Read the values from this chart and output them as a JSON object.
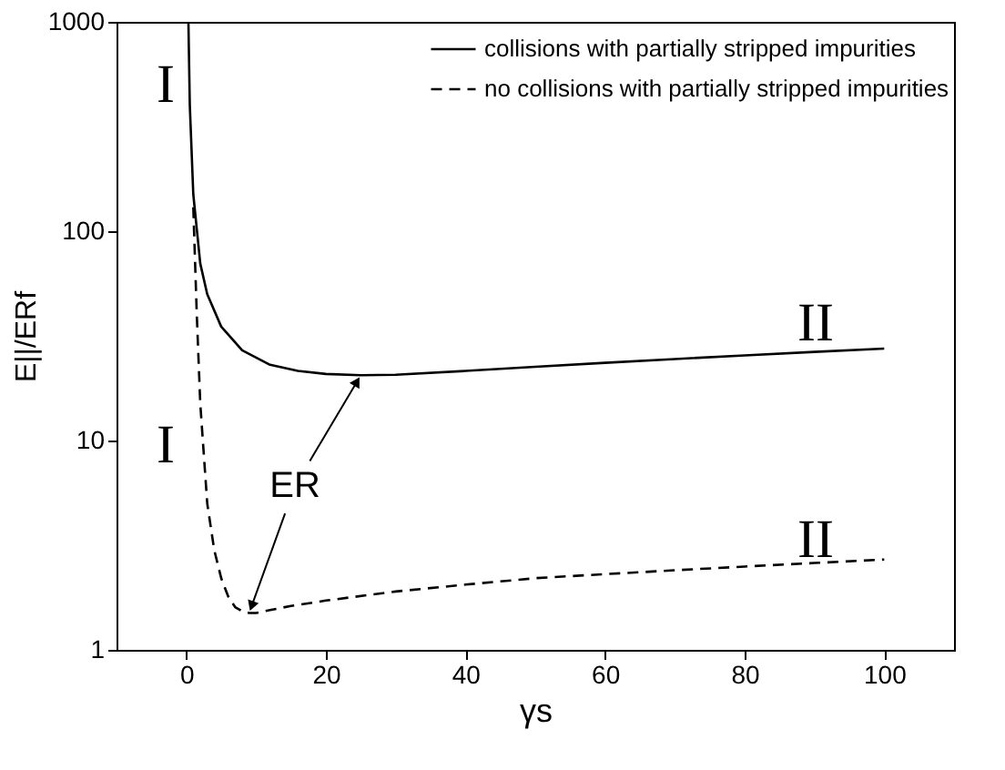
{
  "chart_data": {
    "type": "line",
    "xlabel": "γs",
    "ylabel": "E||/ERf",
    "log": "y",
    "xlim": [
      -10,
      110
    ],
    "xticks": [
      0,
      20,
      40,
      60,
      80,
      100
    ],
    "ylim": [
      1,
      1000
    ],
    "yticks": [
      1,
      10,
      100,
      {
        "value": 1000,
        "label": "1000"
      }
    ],
    "grid": false,
    "legend": "top right",
    "marker": "none",
    "series": [
      {
        "name": "collisions with partially stripped impurities",
        "color": "#000000",
        "line_style": "solid",
        "x": [
          0.3,
          0.5,
          1,
          2,
          3,
          5,
          8,
          12,
          16,
          20,
          25,
          30,
          40,
          50,
          60,
          70,
          80,
          90,
          100
        ],
        "values": [
          1000,
          400,
          150,
          70,
          50,
          35,
          27,
          23,
          21.5,
          20.8,
          20.5,
          20.6,
          21.5,
          22.5,
          23.5,
          24.5,
          25.5,
          26.5,
          27.5
        ]
      },
      {
        "name": "no collisions with partially stripped impurities",
        "color": "#000000",
        "line_style": "dashed",
        "x": [
          1,
          1.5,
          2,
          3,
          4,
          5,
          6,
          7,
          8,
          9,
          10,
          12,
          15,
          20,
          30,
          40,
          50,
          60,
          70,
          80,
          90,
          100
        ],
        "values": [
          130,
          40,
          15,
          5,
          3,
          2.2,
          1.8,
          1.6,
          1.53,
          1.5,
          1.5,
          1.55,
          1.62,
          1.72,
          1.9,
          2.05,
          2.2,
          2.3,
          2.4,
          2.5,
          2.6,
          2.7
        ]
      }
    ],
    "annotations": [
      "I",
      "I",
      "II",
      "II",
      {
        "text": "ER",
        "x": 25,
        "y": 20.5
      }
    ]
  }
}
